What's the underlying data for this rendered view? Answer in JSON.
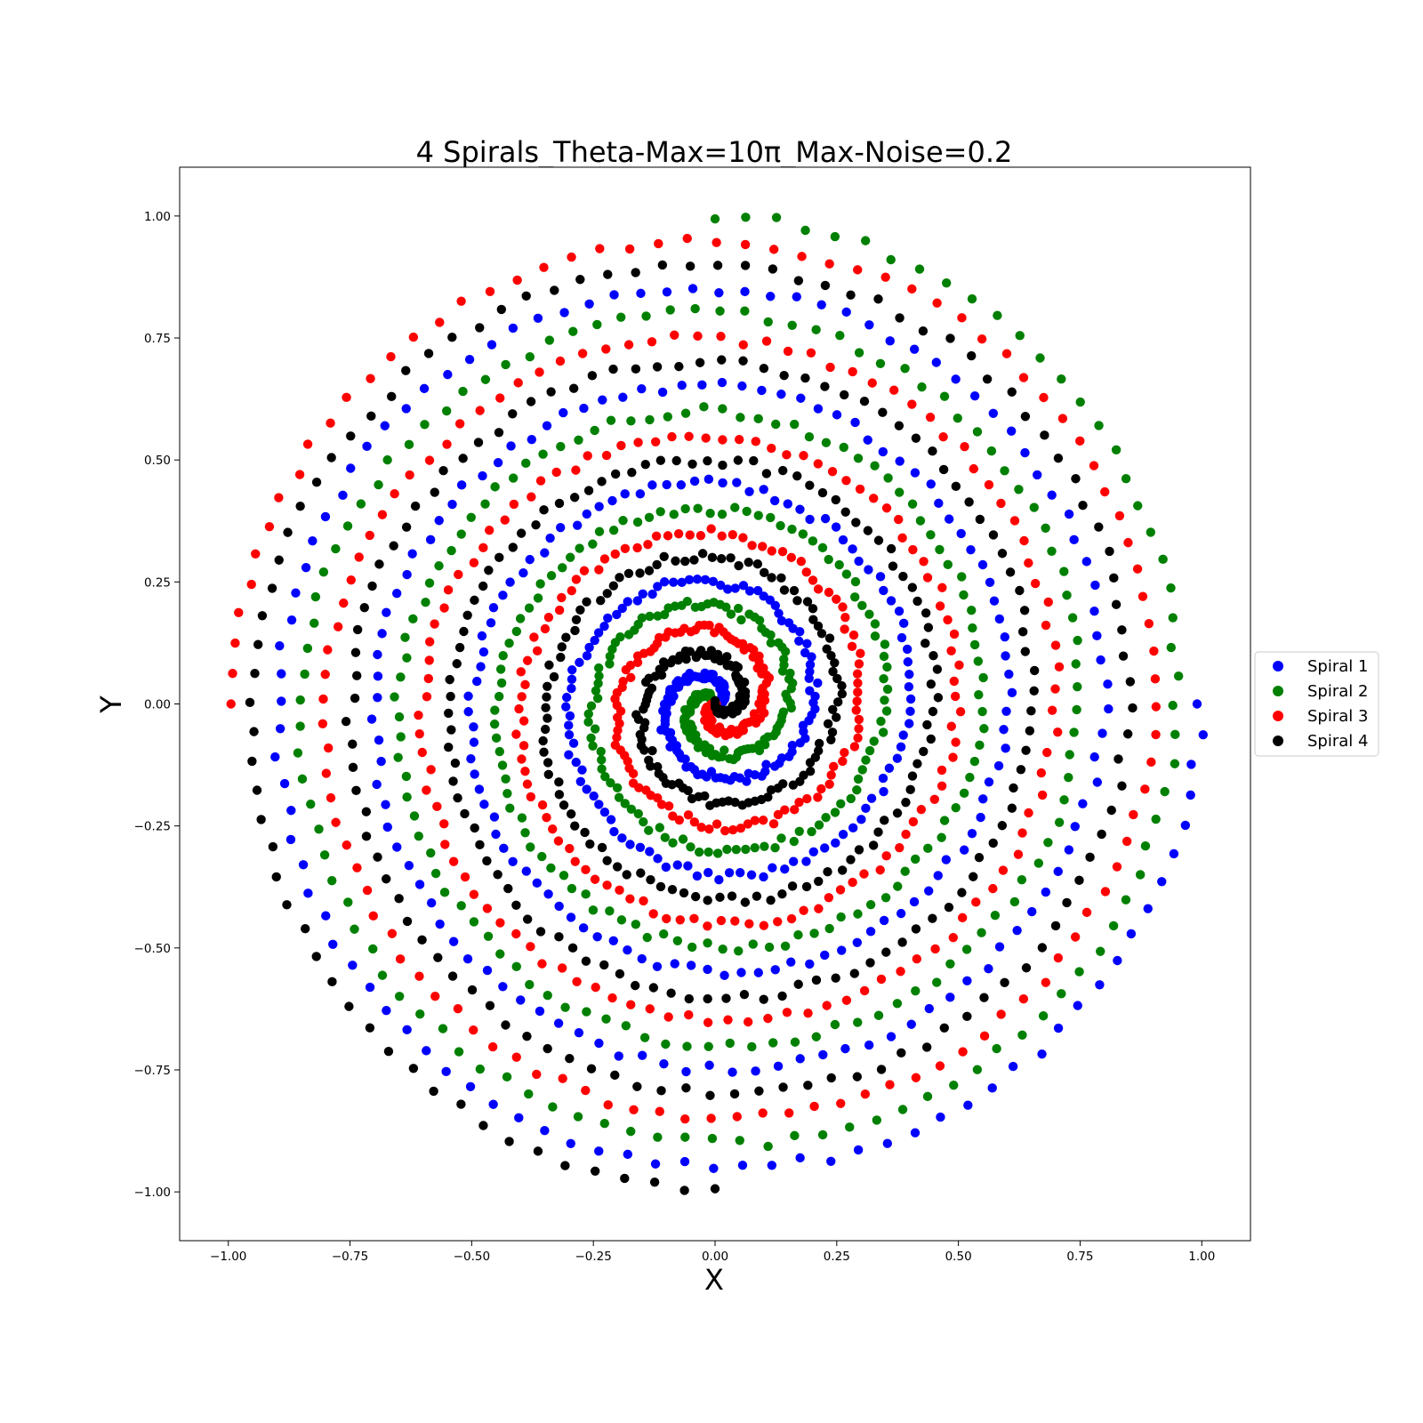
{
  "chart_data": {
    "type": "scatter",
    "title": "4 Spirals_Theta-Max=10π_Max-Noise=0.2",
    "xlabel": "X",
    "ylabel": "Y",
    "xlim": [
      -1.1,
      1.1
    ],
    "ylim": [
      -1.1,
      1.1
    ],
    "xticks": [
      "−1.00",
      "−0.75",
      "−0.50",
      "−0.25",
      "0.00",
      "0.25",
      "0.50",
      "0.75",
      "1.00"
    ],
    "yticks": [
      "−1.00",
      "−0.75",
      "−0.50",
      "−0.25",
      "0.00",
      "0.25",
      "0.50",
      "0.75",
      "1.00"
    ],
    "grid": false,
    "legend_position": "right",
    "theta_max": "10π",
    "max_noise": 0.2,
    "points_per_spiral": 500,
    "series": [
      {
        "name": "Spiral 1",
        "color": "#0000ff",
        "phase_deg": 0,
        "start": [
          1.0,
          0.0
        ]
      },
      {
        "name": "Spiral 2",
        "color": "#008000",
        "phase_deg": 90,
        "start": [
          0.0,
          1.0
        ]
      },
      {
        "name": "Spiral 3",
        "color": "#ff0000",
        "phase_deg": 180,
        "start": [
          -1.0,
          0.0
        ]
      },
      {
        "name": "Spiral 4",
        "color": "#000000",
        "phase_deg": 270,
        "start": [
          0.0,
          -1.0
        ]
      }
    ]
  }
}
